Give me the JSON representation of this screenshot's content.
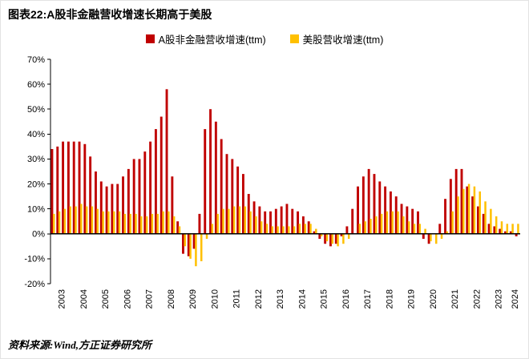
{
  "title": "图表22:A股非金融营收增速长期高于美股",
  "source": "资料来源:Wind,方正证券研究所",
  "legend": [
    {
      "label": "A股非金融营收增速(ttm)",
      "color": "#C00000"
    },
    {
      "label": "美股营收增速(ttm)",
      "color": "#FFC000"
    }
  ],
  "chart_data": {
    "type": "bar",
    "title": "图表22:A股非金融营收增速长期高于美股",
    "xlabel": "",
    "ylabel": "",
    "ylim": [
      -20,
      70
    ],
    "ytick_step": 10,
    "ytick_suffix": "%",
    "grid": false,
    "legend_position": "top",
    "x": [
      "2003Q1",
      "2003Q2",
      "2003Q3",
      "2003Q4",
      "2004Q1",
      "2004Q2",
      "2004Q3",
      "2004Q4",
      "2005Q1",
      "2005Q2",
      "2005Q3",
      "2005Q4",
      "2006Q1",
      "2006Q2",
      "2006Q3",
      "2006Q4",
      "2007Q1",
      "2007Q2",
      "2007Q3",
      "2007Q4",
      "2008Q1",
      "2008Q2",
      "2008Q3",
      "2008Q4",
      "2009Q1",
      "2009Q2",
      "2009Q3",
      "2009Q4",
      "2010Q1",
      "2010Q2",
      "2010Q3",
      "2010Q4",
      "2011Q1",
      "2011Q2",
      "2011Q3",
      "2011Q4",
      "2012Q1",
      "2012Q2",
      "2012Q3",
      "2012Q4",
      "2013Q1",
      "2013Q2",
      "2013Q3",
      "2013Q4",
      "2014Q1",
      "2014Q2",
      "2014Q3",
      "2014Q4",
      "2015Q1",
      "2015Q2",
      "2015Q3",
      "2015Q4",
      "2016Q1",
      "2016Q2",
      "2016Q3",
      "2016Q4",
      "2017Q1",
      "2017Q2",
      "2017Q3",
      "2017Q4",
      "2018Q1",
      "2018Q2",
      "2018Q3",
      "2018Q4",
      "2019Q1",
      "2019Q2",
      "2019Q3",
      "2019Q4",
      "2020Q1",
      "2020Q2",
      "2020Q3",
      "2020Q4",
      "2021Q1",
      "2021Q2",
      "2021Q3",
      "2021Q4",
      "2022Q1",
      "2022Q2",
      "2022Q3",
      "2022Q4",
      "2023Q1",
      "2023Q2",
      "2023Q3",
      "2023Q4",
      "2024Q1",
      "2024Q2"
    ],
    "xtick_labels": [
      "2003",
      "2004",
      "2005",
      "2006",
      "2007",
      "2008",
      "2009",
      "2010",
      "2011",
      "2012",
      "2013",
      "2014",
      "2015",
      "2016",
      "2017",
      "2018",
      "2019",
      "2020",
      "2021",
      "2022",
      "2023",
      "2024"
    ],
    "series": [
      {
        "name": "A股非金融营收增速(ttm)",
        "color": "#C00000",
        "values": [
          34,
          35,
          37,
          37,
          37,
          37,
          36,
          31,
          25,
          21,
          19,
          20,
          20,
          23,
          26,
          30,
          30,
          33,
          37,
          42,
          47,
          58,
          23,
          5,
          -8,
          -9,
          -6,
          8,
          42,
          50,
          45,
          38,
          32,
          30,
          27,
          24,
          16,
          13,
          11,
          9,
          9,
          10,
          11,
          12,
          10,
          9,
          7,
          5,
          1,
          -2,
          -4,
          -5,
          -4,
          -1,
          3,
          10,
          19,
          23,
          26,
          24,
          21,
          19,
          17,
          15,
          12,
          11,
          10,
          9,
          -2,
          -4,
          0,
          4,
          14,
          22,
          26,
          26,
          19,
          15,
          11,
          8,
          4,
          3,
          2,
          1,
          1,
          -1
        ]
      },
      {
        "name": "美股营收增速(ttm)",
        "color": "#FFC000",
        "values": [
          8,
          9,
          10,
          11,
          11,
          12,
          11,
          11,
          10,
          9,
          9,
          9,
          9,
          8,
          8,
          8,
          7,
          7,
          8,
          8,
          9,
          9,
          7,
          3,
          -5,
          -10,
          -13,
          -11,
          -2,
          4,
          8,
          10,
          10,
          11,
          11,
          11,
          9,
          7,
          5,
          4,
          3,
          3,
          3,
          3,
          3,
          4,
          4,
          4,
          2,
          -1,
          -3,
          -4,
          -5,
          -4,
          -2,
          0,
          4,
          5,
          6,
          7,
          8,
          9,
          9,
          9,
          7,
          5,
          4,
          4,
          2,
          -3,
          -4,
          -2,
          1,
          9,
          15,
          18,
          20,
          19,
          17,
          13,
          10,
          7,
          5,
          4,
          4,
          4
        ]
      }
    ]
  }
}
